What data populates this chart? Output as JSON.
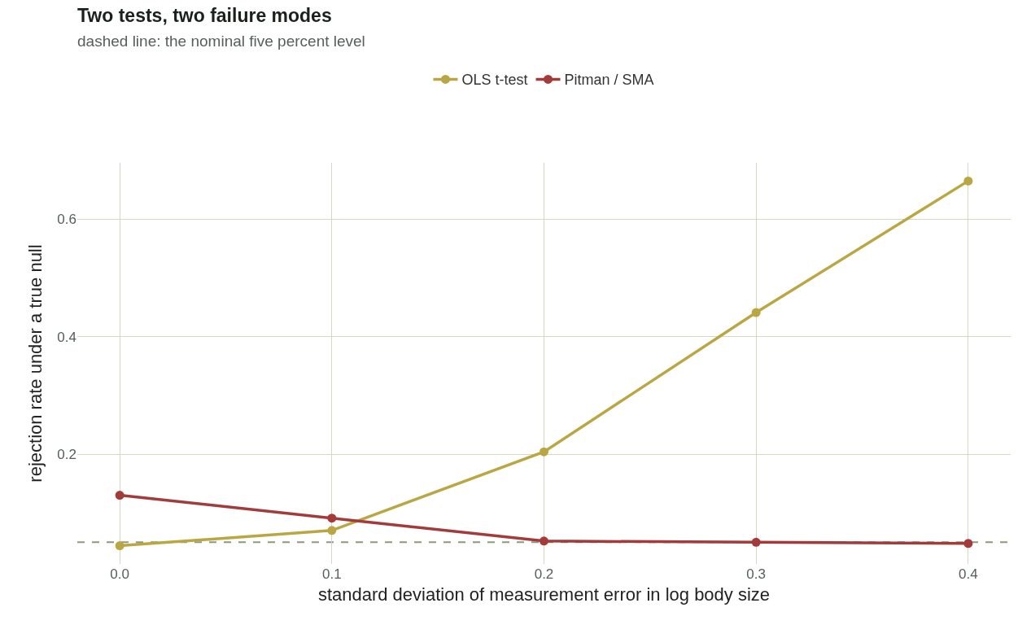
{
  "chart_data": {
    "type": "line",
    "title": "Two tests, two failure modes",
    "subtitle": "dashed line: the nominal five percent level",
    "xlabel": "standard deviation of measurement error in log body size",
    "ylabel": "rejection rate under a true null",
    "x": [
      0.0,
      0.1,
      0.2,
      0.3,
      0.4
    ],
    "series": [
      {
        "name": "OLS t-test",
        "color": "#bba644",
        "values": [
          0.044,
          0.07,
          0.204,
          0.441,
          0.665
        ]
      },
      {
        "name": "Pitman / SMA",
        "color": "#a33b3b",
        "values": [
          0.13,
          0.091,
          0.052,
          0.05,
          0.048
        ]
      }
    ],
    "xlim": [
      -0.02,
      0.42
    ],
    "xticks": [
      {
        "value": 0,
        "label": "0.0"
      },
      0.1,
      0.2,
      0.3,
      0.4
    ],
    "ylim": [
      0.013,
      0.696
    ],
    "yticks": [
      0.2,
      0.4,
      0.6
    ],
    "ref_lines": [
      {
        "axis": "y",
        "value": 0.05,
        "color": "#8c9a7c",
        "line_style": "dashed"
      }
    ],
    "grid": true,
    "legend": "top",
    "marker": "circle",
    "line_style": "solid"
  }
}
